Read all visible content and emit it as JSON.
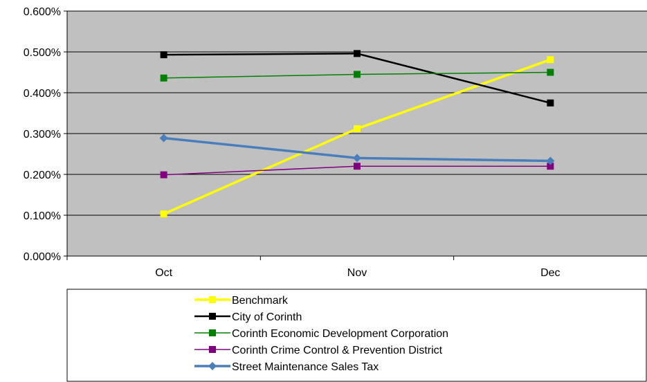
{
  "chart_data": {
    "type": "line",
    "categories": [
      "Oct",
      "Nov",
      "Dec"
    ],
    "ylim": [
      0,
      0.6
    ],
    "yticks": [
      "0.000%",
      "0.100%",
      "0.200%",
      "0.300%",
      "0.400%",
      "0.500%",
      "0.600%"
    ],
    "grid": true,
    "legend_position": "bottom",
    "title": "",
    "xlabel": "",
    "ylabel": "",
    "series": [
      {
        "name": "Benchmark",
        "values": [
          0.103,
          0.312,
          0.481
        ],
        "color": "#ffff00",
        "marker": "square",
        "line_width": "thick"
      },
      {
        "name": "City of Corinth",
        "values": [
          0.493,
          0.496,
          0.375
        ],
        "color": "#000000",
        "marker": "square",
        "line_width": "medium"
      },
      {
        "name": "Corinth Economic Development Corporation",
        "values": [
          0.436,
          0.445,
          0.45
        ],
        "color": "#008000",
        "marker": "square",
        "line_width": "thin"
      },
      {
        "name": "Corinth Crime Control & Prevention District",
        "values": [
          0.199,
          0.22,
          0.22
        ],
        "color": "#800080",
        "marker": "square",
        "line_width": "thin"
      },
      {
        "name": "Street Maintenance Sales Tax",
        "values": [
          0.289,
          0.24,
          0.233
        ],
        "color": "#4a7ebb",
        "marker": "diamond",
        "line_width": "thick"
      }
    ]
  }
}
